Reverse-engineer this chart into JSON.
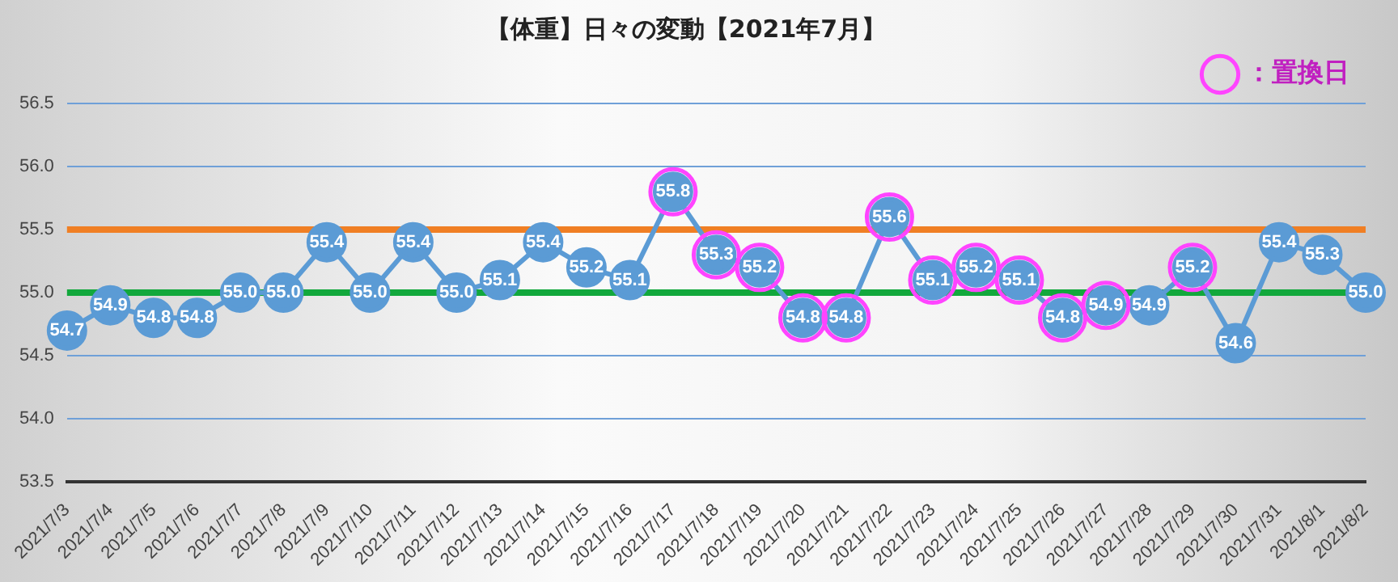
{
  "chart_data": {
    "type": "line",
    "title": "【体重】日々の変動【2021年7月】",
    "categories": [
      "2021/7/3",
      "2021/7/4",
      "2021/7/5",
      "2021/7/6",
      "2021/7/7",
      "2021/7/8",
      "2021/7/9",
      "2021/7/10",
      "2021/7/11",
      "2021/7/12",
      "2021/7/13",
      "2021/7/14",
      "2021/7/15",
      "2021/7/16",
      "2021/7/17",
      "2021/7/18",
      "2021/7/19",
      "2021/7/20",
      "2021/7/21",
      "2021/7/22",
      "2021/7/23",
      "2021/7/24",
      "2021/7/25",
      "2021/7/26",
      "2021/7/27",
      "2021/7/28",
      "2021/7/29",
      "2021/7/30",
      "2021/7/31",
      "2021/8/1",
      "2021/8/2"
    ],
    "series": [
      {
        "type": "line",
        "color": "#5b9bd5",
        "marker": "circle",
        "values": [
          54.7,
          54.9,
          54.8,
          54.8,
          55.0,
          55.0,
          55.4,
          55.0,
          55.4,
          55.0,
          55.1,
          55.4,
          55.2,
          55.1,
          55.8,
          55.3,
          55.2,
          54.8,
          54.8,
          55.6,
          55.1,
          55.2,
          55.1,
          54.8,
          54.9,
          54.9,
          55.2,
          54.6,
          55.4,
          55.3,
          55.0
        ],
        "value_labels": [
          "54.7",
          "54.9",
          "54.8",
          "54.8",
          "55.0",
          "55.0",
          "55.4",
          "55.0",
          "55.4",
          "55.0",
          "55.1",
          "55.4",
          "55.2",
          "55.1",
          "55.8",
          "55.3",
          "55.2",
          "54.8",
          "54.8",
          "55.6",
          "55.1",
          "55.2",
          "55.1",
          "54.8",
          "54.9",
          "54.9",
          "55.2",
          "54.6",
          "55.4",
          "55.3",
          "55.0"
        ]
      },
      {
        "type": "scatter",
        "name": "：置換日",
        "color": "#ff44ff",
        "marker": "circle",
        "values": [
          null,
          null,
          null,
          null,
          null,
          null,
          null,
          null,
          null,
          null,
          null,
          null,
          null,
          null,
          55.8,
          55.3,
          55.2,
          54.8,
          54.8,
          55.6,
          55.1,
          55.2,
          55.1,
          54.8,
          54.9,
          null,
          55.2,
          null,
          null,
          null,
          null
        ]
      }
    ],
    "ylim": [
      53.5,
      56.5
    ],
    "yticks": [
      {
        "value": 53.5,
        "label": "53.5"
      },
      {
        "value": 54,
        "label": "54.0"
      },
      {
        "value": 54.5,
        "label": "54.5"
      },
      {
        "value": 55,
        "label": "55.0"
      },
      {
        "value": 55.5,
        "label": "55.5"
      },
      {
        "value": 56,
        "label": "56.0"
      },
      {
        "value": 56.5,
        "label": "56.5"
      }
    ],
    "grid": "y",
    "legend": "top right",
    "ref_lines": [
      {
        "axis": "y",
        "value": 55.5,
        "color": "#f07f24"
      },
      {
        "axis": "y",
        "value": 55,
        "color": "#12a83c"
      }
    ]
  }
}
